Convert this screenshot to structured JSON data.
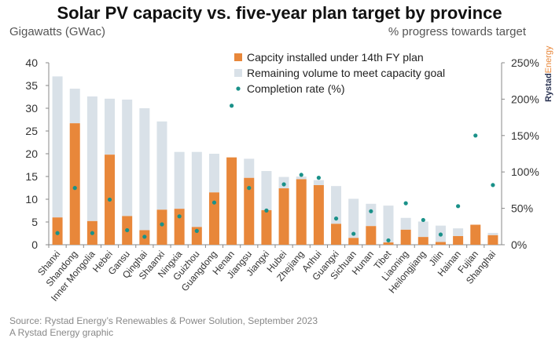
{
  "title": "Solar PV capacity vs. five-year plan target by province",
  "logo": {
    "part1": "Rystad",
    "part2": "Energy"
  },
  "colors": {
    "installed": "#e8873a",
    "remaining": "#d9e1e8",
    "rate": "#1a9189",
    "axis": "#888"
  },
  "chart_data": {
    "type": "bar",
    "stacked": true,
    "title": "Solar PV capacity vs. five-year plan target by province",
    "ylabel": "Gigawatts (GWac)",
    "y2label": "% progress towards target",
    "ylim": [
      0,
      40
    ],
    "yticks": [
      "0",
      "5",
      "10",
      "15",
      "20",
      "25",
      "30",
      "35",
      "40"
    ],
    "y2lim": [
      0,
      250
    ],
    "y2ticks": [
      "0%",
      "50%",
      "100%",
      "150%",
      "200%",
      "250%"
    ],
    "legend_position": "top-center",
    "legend": [
      "Capcity installed under 14th FY plan",
      "Remaining volume to meet capacity goal",
      "Completion rate (%)"
    ],
    "categories": [
      "Shanxi",
      "Shandong",
      "Inner Mongolia",
      "Hebei",
      "Gansu",
      "Qinghai",
      "Shaanxi",
      "Ningxia",
      "Guizhou",
      "Guangdong",
      "Henan",
      "Jiangsu",
      "Jiangxi",
      "Hubei",
      "Zhejiang",
      "Anhui",
      "Guangxi",
      "Sichuan",
      "Hunan",
      "Tibet",
      "Liaoning",
      "Heilongjiang",
      "Jilin",
      "Hainan",
      "Fujian",
      "Shanghai"
    ],
    "series": [
      {
        "name": "Capcity installed under 14th FY plan",
        "values": [
          6,
          26.7,
          5.2,
          19.8,
          6.3,
          3.2,
          7.7,
          7.9,
          3.9,
          11.5,
          19.2,
          14.7,
          7.6,
          12.4,
          14.4,
          13.1,
          4.6,
          1.5,
          4.1,
          0.5,
          3.3,
          1.7,
          0.6,
          1.9,
          4.4,
          2.1
        ]
      },
      {
        "name": "Remaining volume to meet capacity goal",
        "values": [
          31,
          7.6,
          27.4,
          12.3,
          25.6,
          26.8,
          19.4,
          12.5,
          16.5,
          8.5,
          0,
          4.2,
          8.6,
          2.5,
          0.6,
          1.1,
          8.3,
          8.6,
          4.9,
          8.1,
          2.6,
          3.4,
          3.6,
          1.7,
          0,
          0.5
        ]
      },
      {
        "name": "Completion rate (%)",
        "axis": "right",
        "values": [
          16,
          78,
          16,
          62,
          20,
          11,
          28,
          39,
          19,
          58,
          191,
          78,
          47,
          83,
          96,
          92,
          36,
          15,
          46,
          6,
          57,
          34,
          14,
          53,
          150,
          82
        ]
      }
    ]
  },
  "source": "Source: Rystad Energy’s Renewables & Power Solution, September 2023",
  "credit": "A Rystad Energy graphic"
}
